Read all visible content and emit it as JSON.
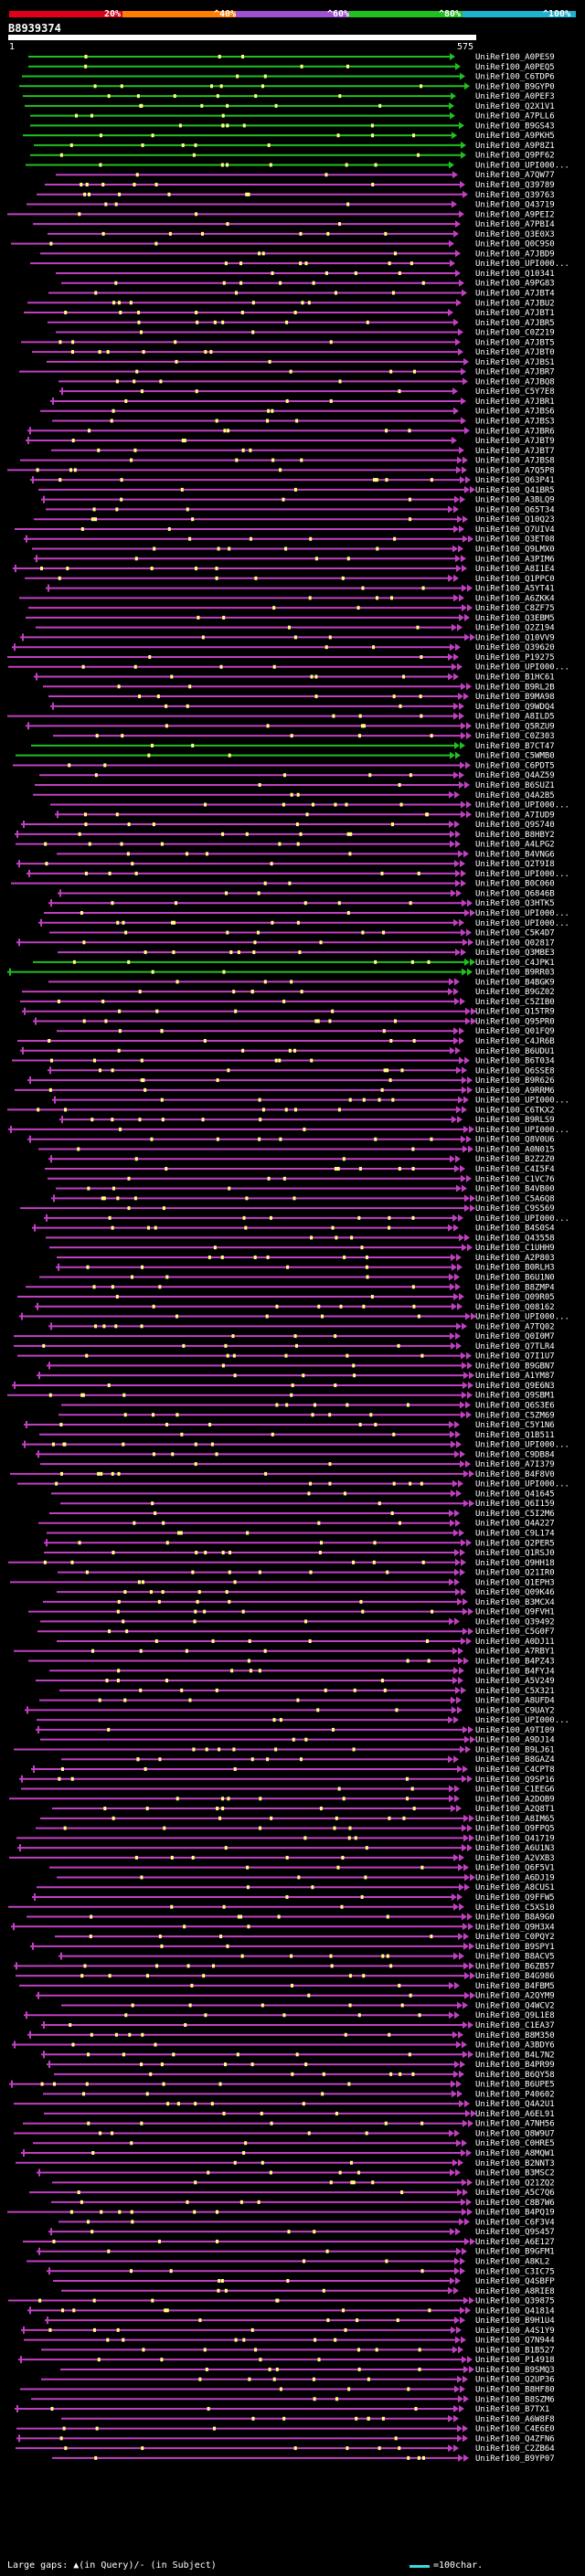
{
  "legend": {
    "marks": [
      "20%",
      "^40%",
      "^60%",
      "^80%",
      "^100%"
    ],
    "colors": [
      "#e0001a",
      "#ff7f00",
      "#a050d0",
      "#20c020",
      "#20b0d0"
    ]
  },
  "query": {
    "id": "B8939374",
    "start": "1",
    "end": "575"
  },
  "hit_colors": {
    "high": "#20c020",
    "mid": "#c040c0",
    "low": "#e0001a",
    "gap_query": "#ff9900",
    "insert": "#ffff80"
  },
  "hits": [
    "UniRef100_A0PES9",
    "UniRef100_A0PEQ5",
    "UniRef100_C6TDP6",
    "UniRef100_B9GYP0",
    "UniRef100_A0PEF3",
    "UniRef100_Q2X1V1",
    "UniRef100_A7PLL6",
    "UniRef100_B9GS43",
    "UniRef100_A9PKH5",
    "UniRef100_A9P8Z1",
    "UniRef100_Q9PF62",
    "UniRef100_UPI000...",
    "UniRef100_A7QW77",
    "UniRef100_Q39789",
    "UniRef100_Q39763",
    "UniRef100_Q43719",
    "UniRef100_A9PEI2",
    "UniRef100_A7PBI4",
    "UniRef100_Q3E0X3",
    "UniRef100_Q0C9S0",
    "UniRef100_A7JBD9",
    "UniRef100_UPI000...",
    "UniRef100_Q10341",
    "UniRef100_A9PG83",
    "UniRef100_A7JBT4",
    "UniRef100_A7JBU2",
    "UniRef100_A7JBT1",
    "UniRef100_A7JBR5",
    "UniRef100_C0Z219",
    "UniRef100_A7JBT5",
    "UniRef100_A7JBT0",
    "UniRef100_A7JBS1",
    "UniRef100_A7JBR7",
    "UniRef100_A7JBQ8",
    "UniRef100_C5Y7E8",
    "UniRef100_A7JBR1",
    "UniRef100_A7JBS6",
    "UniRef100_A7JBS3",
    "UniRef100_A7JBR6",
    "UniRef100_A7JBT9",
    "UniRef100_A7JBT7",
    "UniRef100_A7JBS8",
    "UniRef100_A7Q5P8",
    "UniRef100_Q63P41",
    "UniRef100_Q41BR5",
    "UniRef100_A3BLQ9",
    "UniRef100_Q65T34",
    "UniRef100_Q10Q23",
    "UniRef100_Q7UIV4",
    "UniRef100_Q3ET08",
    "UniRef100_Q9LMX0",
    "UniRef100_A3PIM6",
    "UniRef100_A8I1E4",
    "UniRef100_Q1PPC0",
    "UniRef100_A5YT41",
    "UniRef100_A6ZKK4",
    "UniRef100_C8ZF75",
    "UniRef100_Q3EBM5",
    "UniRef100_Q2Z194",
    "UniRef100_Q10VV9",
    "UniRef100_Q39620",
    "UniRef100_P19275",
    "UniRef100_UPI000...",
    "UniRef100_B1HC61",
    "UniRef100_B9RL2B",
    "UniRef100_B9MA98",
    "UniRef100_Q9WDQ4",
    "UniRef100_A8ILD5",
    "UniRef100_Q5RZU9",
    "UniRef100_C0Z303",
    "UniRef100_B7CT47",
    "UniRef100_C5WMB0",
    "UniRef100_C6PDT5",
    "UniRef100_Q4AZ59",
    "UniRef100_B6SUZ1",
    "UniRef100_Q4A2B5",
    "UniRef100_UPI000...",
    "UniRef100_A7IUD9",
    "UniRef100_Q9S740",
    "UniRef100_B8HBY2",
    "UniRef100_A4LPG2",
    "UniRef100_B4VNG6",
    "UniRef100_Q2T9I8",
    "UniRef100_UPI000...",
    "UniRef100_B0C060",
    "UniRef100_Q6846B",
    "UniRef100_Q3HTK5",
    "UniRef100_UPI000...",
    "UniRef100_UPI000...",
    "UniRef100_C5K4D7",
    "UniRef100_Q02817",
    "UniRef100_Q3MBE3",
    "UniRef100_C4JPK1",
    "UniRef100_B9RR03",
    "UniRef100_B4BGK9",
    "UniRef100_B9GZ02",
    "UniRef100_C5ZIB0",
    "UniRef100_Q15TR9",
    "UniRef100_Q95PR0",
    "UniRef100_Q01FQ9",
    "UniRef100_C4JR6B",
    "UniRef100_B6UDU1",
    "UniRef100_B6T034",
    "UniRef100_Q6SSE8",
    "UniRef100_B9R626",
    "UniRef100_A9RRM6",
    "UniRef100_UPI000...",
    "UniRef100_C6TKX2",
    "UniRef100_B9RLS9",
    "UniRef100_UPI000...",
    "UniRef100_Q8V0U6",
    "UniRef100_A0N015",
    "UniRef100_B2Z2Z0",
    "UniRef100_C4I5F4",
    "UniRef100_C1VC76",
    "UniRef100_B4VB00",
    "UniRef100_C5A6Q8",
    "UniRef100_C9S569",
    "UniRef100_UPI000...",
    "UniRef100_B4S0S4",
    "UniRef100_Q43558",
    "UniRef100_C1UHH9",
    "UniRef100_A2P803",
    "UniRef100_B0RLH3",
    "UniRef100_B6U1N0",
    "UniRef100_B8ZMP4",
    "UniRef100_Q09R05",
    "UniRef100_Q08162",
    "UniRef100_UPI000...",
    "UniRef100_A7TQ02",
    "UniRef100_Q0I0M7",
    "UniRef100_Q7TLR4",
    "UniRef100_Q7I1U7",
    "UniRef100_B9GBN7",
    "UniRef100_A1YM87",
    "UniRef100_Q9E6N3",
    "UniRef100_Q9SBM1",
    "UniRef100_Q6S3E6",
    "UniRef100_C5ZM69",
    "UniRef100_C5Y1N6",
    "UniRef100_Q1B511",
    "UniRef100_UPI000...",
    "UniRef100_C9DB84",
    "UniRef100_A7I379",
    "UniRef100_B4F8V0",
    "UniRef100_UPI000...",
    "UniRef100_Q41645",
    "UniRef100_Q6I159",
    "UniRef100_C5I2M6",
    "UniRef100_Q4A227",
    "UniRef100_C9L174",
    "UniRef100_Q2PER5",
    "UniRef100_Q1RSJ0",
    "UniRef100_Q9HH18",
    "UniRef100_Q21IR0",
    "UniRef100_Q1EPH3",
    "UniRef100_Q09K46",
    "UniRef100_B3MCX4",
    "UniRef100_Q9FVH1",
    "UniRef100_Q39492",
    "UniRef100_C5G0F7",
    "UniRef100_A0DJ11",
    "UniRef100_A7RBY1",
    "UniRef100_B4PZ43",
    "UniRef100_B4FYJ4",
    "UniRef100_A5V249",
    "UniRef100_C5X321",
    "UniRef100_A8UFD4",
    "UniRef100_C9UAY2",
    "UniRef100_UPI000...",
    "UniRef100_A9TI09",
    "UniRef100_A9DJ14",
    "UniRef100_B9LJ61",
    "UniRef100_B8GAZ4",
    "UniRef100_C4CPT8",
    "UniRef100_Q9SP16",
    "UniRef100_C1EEG6",
    "UniRef100_A2DOB9",
    "UniRef100_A2Q8T1",
    "UniRef100_A8IM65",
    "UniRef100_Q9FPQ5",
    "UniRef100_Q41719",
    "UniRef100_A6U1N3",
    "UniRef100_A2VXB3",
    "UniRef100_Q6F5V1",
    "UniRef100_A6DJ19",
    "UniRef100_A8CUS1",
    "UniRef100_Q9FFW5",
    "UniRef100_C5XS10",
    "UniRef100_B8A9G0",
    "UniRef100_Q9H3X4",
    "UniRef100_C0PQY2",
    "UniRef100_B9SPY1",
    "UniRef100_B8ACV5",
    "UniRef100_B6ZB57",
    "UniRef100_B4G986",
    "UniRef100_B4FBM5",
    "UniRef100_A2QYM9",
    "UniRef100_Q4WCV2",
    "UniRef100_Q9L1E8",
    "UniRef100_C1EA37",
    "UniRef100_B8M350",
    "UniRef100_A3BDY6",
    "UniRef100_B4L7N2",
    "UniRef100_B4PR99",
    "UniRef100_B6QY58",
    "UniRef100_B6UPE5",
    "UniRef100_P40602",
    "UniRef100_Q4A2U1",
    "UniRef100_A6EL91",
    "UniRef100_A7NH56",
    "UniRef100_Q8W9U7",
    "UniRef100_C0HRE5",
    "UniRef100_A8MQW1",
    "UniRef100_B2NNT3",
    "UniRef100_B3MSC2",
    "UniRef100_Q21ZQ2",
    "UniRef100_A5C7Q6",
    "UniRef100_C8B7W6",
    "UniRef100_B4PQ19",
    "UniRef100_C6F3V4",
    "UniRef100_Q9S457",
    "UniRef100_A6E127",
    "UniRef100_B9GFM1",
    "UniRef100_A8KL2",
    "UniRef100_C3IC75",
    "UniRef100_Q4SBFP",
    "UniRef100_A8RIE8",
    "UniRef100_Q39875",
    "UniRef100_Q41814",
    "UniRef100_B9H1U4",
    "UniRef100_A4S1Y9",
    "UniRef100_Q7N944",
    "UniRef100_B1B527",
    "UniRef100_P14918",
    "UniRef100_B9SMQ3",
    "UniRef100_Q2UP36",
    "UniRef100_B8HF80",
    "UniRef100_B8SZM6",
    "UniRef100_B7TX1",
    "UniRef100_A6W8F8",
    "UniRef100_C4E6E0",
    "UniRef100_Q4ZFN6",
    "UniRef100_C2ZB64",
    "UniRef100_B9YP07"
  ],
  "footer": {
    "label": "Large gaps: ▲(in Query)/- (in Subject)",
    "scale": "=100char."
  }
}
